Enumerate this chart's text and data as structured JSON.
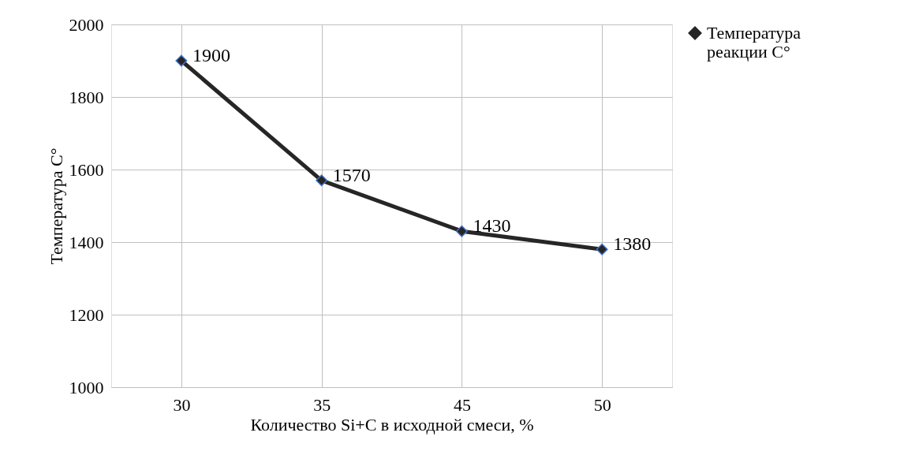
{
  "chart_data": {
    "type": "line",
    "xlabel": "Количество Si+C в исходной смеси, %",
    "ylabel": "Температура С°",
    "categories": [
      "30",
      "35",
      "45",
      "50"
    ],
    "series": [
      {
        "name": "Температура реакции С°",
        "color": "#262626",
        "values": [
          1900,
          1570,
          1430,
          1380
        ]
      }
    ],
    "ylim": [
      1000,
      2000
    ],
    "yticks": [
      1000,
      1200,
      1400,
      1600,
      1800,
      2000
    ],
    "grid": true,
    "legend": "right",
    "marker": "diamond",
    "line_style": "solid",
    "data_labels": true
  }
}
